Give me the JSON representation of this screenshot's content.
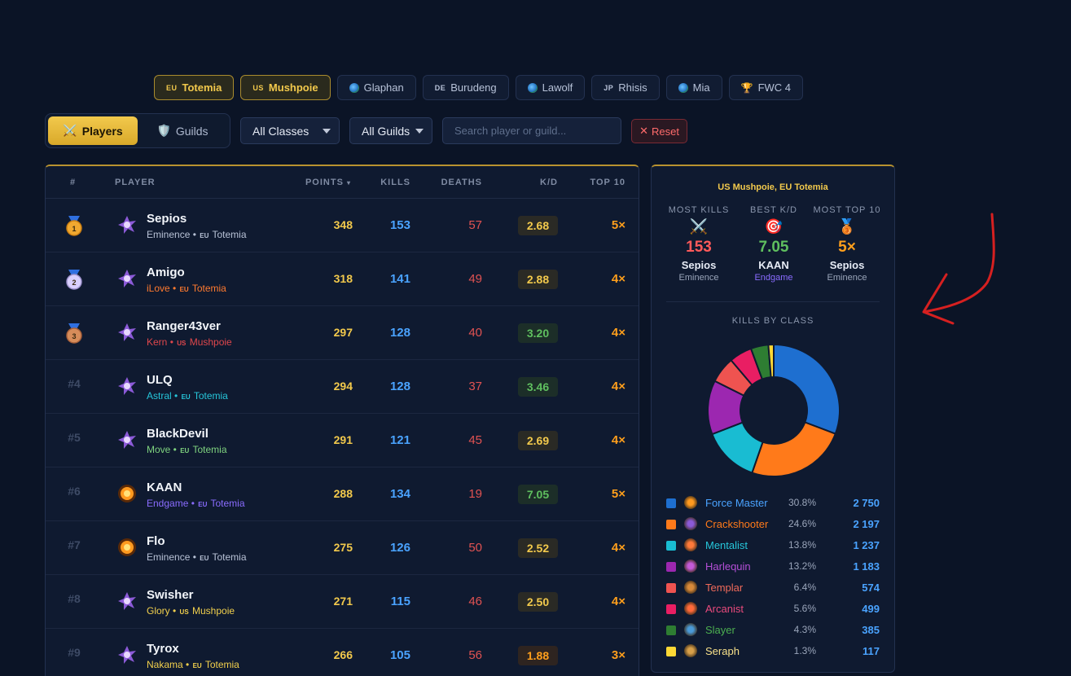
{
  "tabs": [
    {
      "region": "EU",
      "label": "Totemia",
      "active": true
    },
    {
      "region": "US",
      "label": "Mushpoie",
      "active": true
    },
    {
      "region": "globe",
      "label": "Glaphan"
    },
    {
      "region": "DE",
      "label": "Burudeng"
    },
    {
      "region": "globe",
      "label": "Lawolf"
    },
    {
      "region": "JP",
      "label": "Rhisis"
    },
    {
      "region": "globe",
      "label": "Mia"
    },
    {
      "region": "trophy",
      "label": "FWC 4"
    }
  ],
  "mode": {
    "players": "Players",
    "guilds": "Guilds"
  },
  "filters": {
    "classes": "All Classes",
    "guilds": "All Guilds",
    "search_placeholder": "Search player or guild...",
    "reset": "Reset"
  },
  "table": {
    "headers": {
      "rank": "#",
      "player": "PLAYER",
      "points": "POINTS",
      "kills": "KILLS",
      "deaths": "DEATHS",
      "kd": "K/D",
      "top10": "TOP 10"
    },
    "rows": [
      {
        "rank": "",
        "medal": "gold",
        "medal_num": "1",
        "name": "Sepios",
        "guild": "Eminence",
        "guild_color": "#b8c2d6",
        "region": "EU",
        "server": "Totemia",
        "server_color": "#b8c2d6",
        "points": "348",
        "kills": "153",
        "deaths": "57",
        "kd": "2.68",
        "kd_color": "#f2c94c",
        "kd_bg": "#2a2a25",
        "top10": "5×",
        "class": "crackshooter"
      },
      {
        "rank": "",
        "medal": "silver",
        "medal_num": "2",
        "name": "Amigo",
        "guild": "iLove",
        "guild_color": "#ff7a2f",
        "region": "EU",
        "server": "Totemia",
        "server_color": "#ff7a2f",
        "points": "318",
        "kills": "141",
        "deaths": "49",
        "kd": "2.88",
        "kd_color": "#f2c94c",
        "kd_bg": "#2a2a25",
        "top10": "4×",
        "class": "crackshooter"
      },
      {
        "rank": "",
        "medal": "bronze",
        "medal_num": "3",
        "name": "Ranger43ver",
        "guild": "Kern",
        "guild_color": "#e0474c",
        "region": "US",
        "server": "Mushpoie",
        "server_color": "#e0474c",
        "points": "297",
        "kills": "128",
        "deaths": "40",
        "kd": "3.20",
        "kd_color": "#5fbf5f",
        "kd_bg": "#1c2e28",
        "top10": "4×",
        "class": "crackshooter"
      },
      {
        "rank": "#4",
        "name": "ULQ",
        "guild": "Astral",
        "guild_color": "#26c6da",
        "region": "EU",
        "server": "Totemia",
        "server_color": "#26c6da",
        "points": "294",
        "kills": "128",
        "deaths": "37",
        "kd": "3.46",
        "kd_color": "#5fbf5f",
        "kd_bg": "#1c2e28",
        "top10": "4×",
        "class": "crackshooter"
      },
      {
        "rank": "#5",
        "name": "BlackDevil",
        "guild": "Move",
        "guild_color": "#7fd37f",
        "region": "EU",
        "server": "Totemia",
        "server_color": "#7fd37f",
        "points": "291",
        "kills": "121",
        "deaths": "45",
        "kd": "2.69",
        "kd_color": "#f2c94c",
        "kd_bg": "#2a2a25",
        "top10": "4×",
        "class": "crackshooter"
      },
      {
        "rank": "#6",
        "name": "KAAN",
        "guild": "Endgame",
        "guild_color": "#8a6cff",
        "region": "EU",
        "server": "Totemia",
        "server_color": "#8a6cff",
        "points": "288",
        "kills": "134",
        "deaths": "19",
        "kd": "7.05",
        "kd_color": "#5fbf5f",
        "kd_bg": "#1c2e28",
        "top10": "5×",
        "class": "forcemaster"
      },
      {
        "rank": "#7",
        "name": "Flo",
        "guild": "Eminence",
        "guild_color": "#b8c2d6",
        "region": "EU",
        "server": "Totemia",
        "server_color": "#b8c2d6",
        "points": "275",
        "kills": "126",
        "deaths": "50",
        "kd": "2.52",
        "kd_color": "#f2c94c",
        "kd_bg": "#2a2a25",
        "top10": "4×",
        "class": "forcemaster"
      },
      {
        "rank": "#8",
        "name": "Swisher",
        "guild": "Glory",
        "guild_color": "#f2d04c",
        "region": "US",
        "server": "Mushpoie",
        "server_color": "#f2d04c",
        "points": "271",
        "kills": "115",
        "deaths": "46",
        "kd": "2.50",
        "kd_color": "#f2c94c",
        "kd_bg": "#2a2a25",
        "top10": "4×",
        "class": "crackshooter"
      },
      {
        "rank": "#9",
        "name": "Tyrox",
        "guild": "Nakama",
        "guild_color": "#f2d04c",
        "region": "EU",
        "server": "Totemia",
        "server_color": "#f2d04c",
        "points": "266",
        "kills": "105",
        "deaths": "56",
        "kd": "1.88",
        "kd_color": "#ff9f1c",
        "kd_bg": "#2e2420",
        "top10": "3×",
        "class": "crackshooter"
      }
    ]
  },
  "panel": {
    "title": "US Mushpoie, EU Totemia",
    "stats": [
      {
        "label": "MOST KILLS",
        "icon": "⚔️",
        "value": "153",
        "value_color": "#ff5a5a",
        "name": "Sepios",
        "guild": "Eminence",
        "guild_color": "#9aa5ba"
      },
      {
        "label": "BEST K/D",
        "icon": "🎯",
        "value": "7.05",
        "value_color": "#5fbf5f",
        "name": "KAAN",
        "guild": "Endgame",
        "guild_color": "#8a6cff"
      },
      {
        "label": "MOST TOP 10",
        "icon": "🥉",
        "value": "5×",
        "value_color": "#ff9f1c",
        "name": "Sepios",
        "guild": "Eminence",
        "guild_color": "#9aa5ba"
      }
    ],
    "kills_by_class_label": "KILLS BY CLASS"
  },
  "chart_data": {
    "type": "pie",
    "title": "KILLS BY CLASS",
    "categories": [
      "Force Master",
      "Crackshooter",
      "Mentalist",
      "Harlequin",
      "Templar",
      "Arcanist",
      "Slayer",
      "Seraph"
    ],
    "values": [
      2750,
      2197,
      1237,
      1183,
      574,
      499,
      385,
      117
    ],
    "percents": [
      "30.8%",
      "24.6%",
      "13.8%",
      "13.2%",
      "6.4%",
      "5.6%",
      "4.3%",
      "1.3%"
    ],
    "value_labels": [
      "2 750",
      "2 197",
      "1 237",
      "1 183",
      "574",
      "499",
      "385",
      "117"
    ],
    "colors": [
      "#1e6fd0",
      "#ff7a1a",
      "#19bcd2",
      "#9c27b0",
      "#ef5350",
      "#e91e63",
      "#2e7d32",
      "#fdd835"
    ],
    "label_colors": [
      "#4aa3ff",
      "#ff7a1a",
      "#26c6da",
      "#b44fd6",
      "#ef6a5a",
      "#e94a7c",
      "#4caf50",
      "#f7e08a"
    ]
  },
  "annotation": {
    "color": "#d62020"
  }
}
